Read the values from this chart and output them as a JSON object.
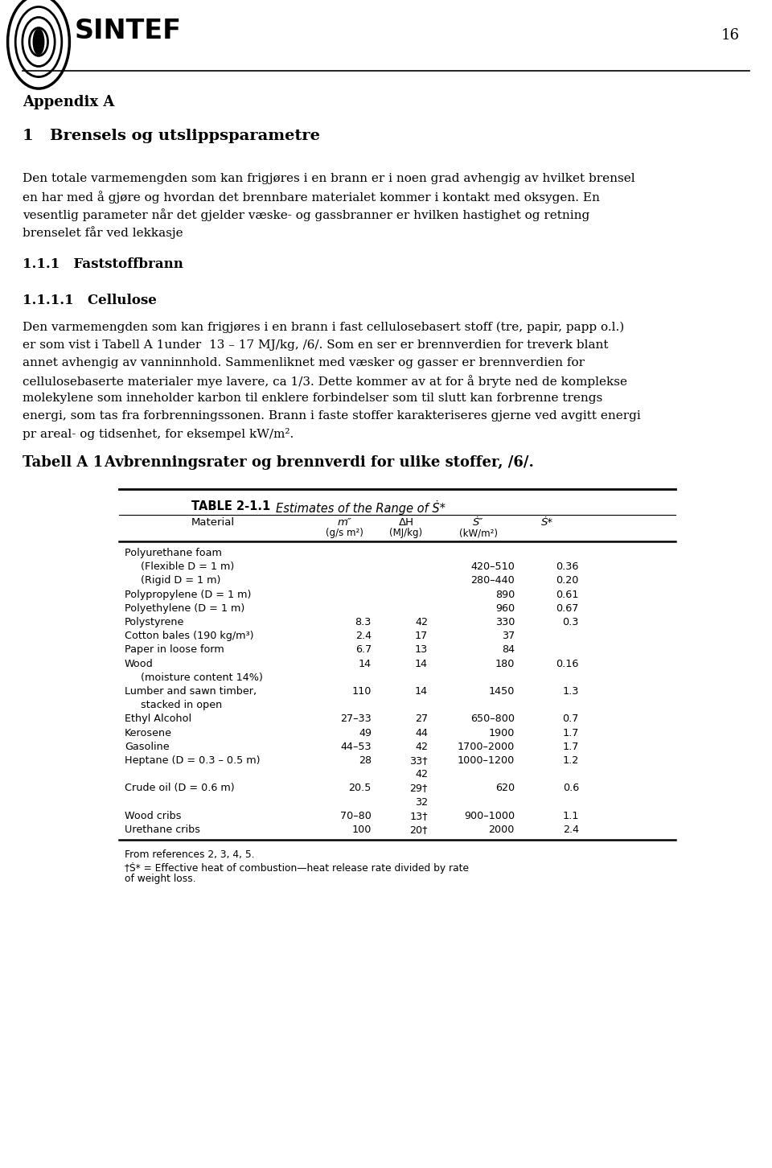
{
  "page_number": "16",
  "background_color": "#ffffff",
  "text_color": "#000000",
  "logo_text": "SINTEF",
  "appendix_label": "Appendix A",
  "section1_title": "1   Brensels og utslippsparametre",
  "para1_lines": [
    "Den totale varmemengden som kan frigjøres i en brann er i noen grad avhengig av hvilket brensel",
    "en har med å gjøre og hvordan det brennbare materialet kommer i kontakt med oksygen. En",
    "vesentlig parameter når det gjelder væske- og gassbranner er hvilken hastighet og retning",
    "brenselet får ved lekkasje"
  ],
  "section11_title": "1.1.1   Faststoffbrann",
  "section111_title": "1.1.1.1   Cellulose",
  "para2_lines": [
    "Den varmemengden som kan frigjøres i en brann i fast cellulosebasert stoff (tre, papir, papp o.l.)",
    "er som vist i Tabell A 1under  13 – 17 MJ/kg, /6/. Som en ser er brennverdien for treverk blant",
    "annet avhengig av vanninnhold. Sammenliknet med væsker og gasser er brennverdien for",
    "cellulosebaserte materialer mye lavere, ca 1/3. Dette kommer av at for å bryte ned de komplekse",
    "molekylene som inneholder karbon til enklere forbindelser som til slutt kan forbrenne trengs",
    "energi, som tas fra forbrenningssonen. Brann i faste stoffer karakteriseres gjerne ved avgitt energi",
    "pr areal- og tidsenhet, for eksempel kW/m²."
  ],
  "table_label": "Tabell A 1",
  "table_caption": "    Avbrenningsrater og brennverdi for ulike stoffer, /6/.",
  "table_title": "TABLE 2-1.1",
  "table_subtitle": "Estimates of the Range of Ṡ*",
  "table_rows": [
    [
      "Polyurethane foam",
      "",
      "",
      "",
      ""
    ],
    [
      "(Flexible D = 1 m)",
      "",
      "",
      "420–510",
      "0.36"
    ],
    [
      "(Rigid D = 1 m)",
      "",
      "",
      "280–440",
      "0.20"
    ],
    [
      "Polypropylene (D = 1 m)",
      "",
      "",
      "890",
      "0.61"
    ],
    [
      "Polyethylene (D = 1 m)",
      "",
      "",
      "960",
      "0.67"
    ],
    [
      "Polystyrene",
      "8.3",
      "42",
      "330",
      "0.3"
    ],
    [
      "Cotton bales (190 kg/m³)",
      "2.4",
      "17",
      "37",
      ""
    ],
    [
      "Paper in loose form",
      "6.7",
      "13",
      "84",
      ""
    ],
    [
      "Wood",
      "14",
      "14",
      "180",
      "0.16"
    ],
    [
      "(moisture content 14%)",
      "",
      "",
      "",
      ""
    ],
    [
      "Lumber and sawn timber,",
      "110",
      "14",
      "1450",
      "1.3"
    ],
    [
      "stacked in open",
      "",
      "",
      "",
      ""
    ],
    [
      "Ethyl Alcohol",
      "27–33",
      "27",
      "650–800",
      "0.7"
    ],
    [
      "Kerosene",
      "49",
      "44",
      "1900",
      "1.7"
    ],
    [
      "Gasoline",
      "44–53",
      "42",
      "1700–2000",
      "1.7"
    ],
    [
      "Heptane (D = 0.3 – 0.5 m)",
      "28",
      "33†",
      "1000–1200",
      "1.2"
    ],
    [
      "",
      "",
      "42",
      "",
      ""
    ],
    [
      "Crude oil (D = 0.6 m)",
      "20.5",
      "29†",
      "620",
      "0.6"
    ],
    [
      "",
      "",
      "32",
      "",
      ""
    ],
    [
      "Wood cribs",
      "70–80",
      "13†",
      "900–1000",
      "1.1"
    ],
    [
      "Urethane cribs",
      "100",
      "20†",
      "2000",
      "2.4"
    ]
  ],
  "footnote1": "From references 2, 3, 4, 5.",
  "footnote2a": "†Ṡ* = Effective heat of combustion—heat release rate divided by rate",
  "footnote2b": "of weight loss."
}
